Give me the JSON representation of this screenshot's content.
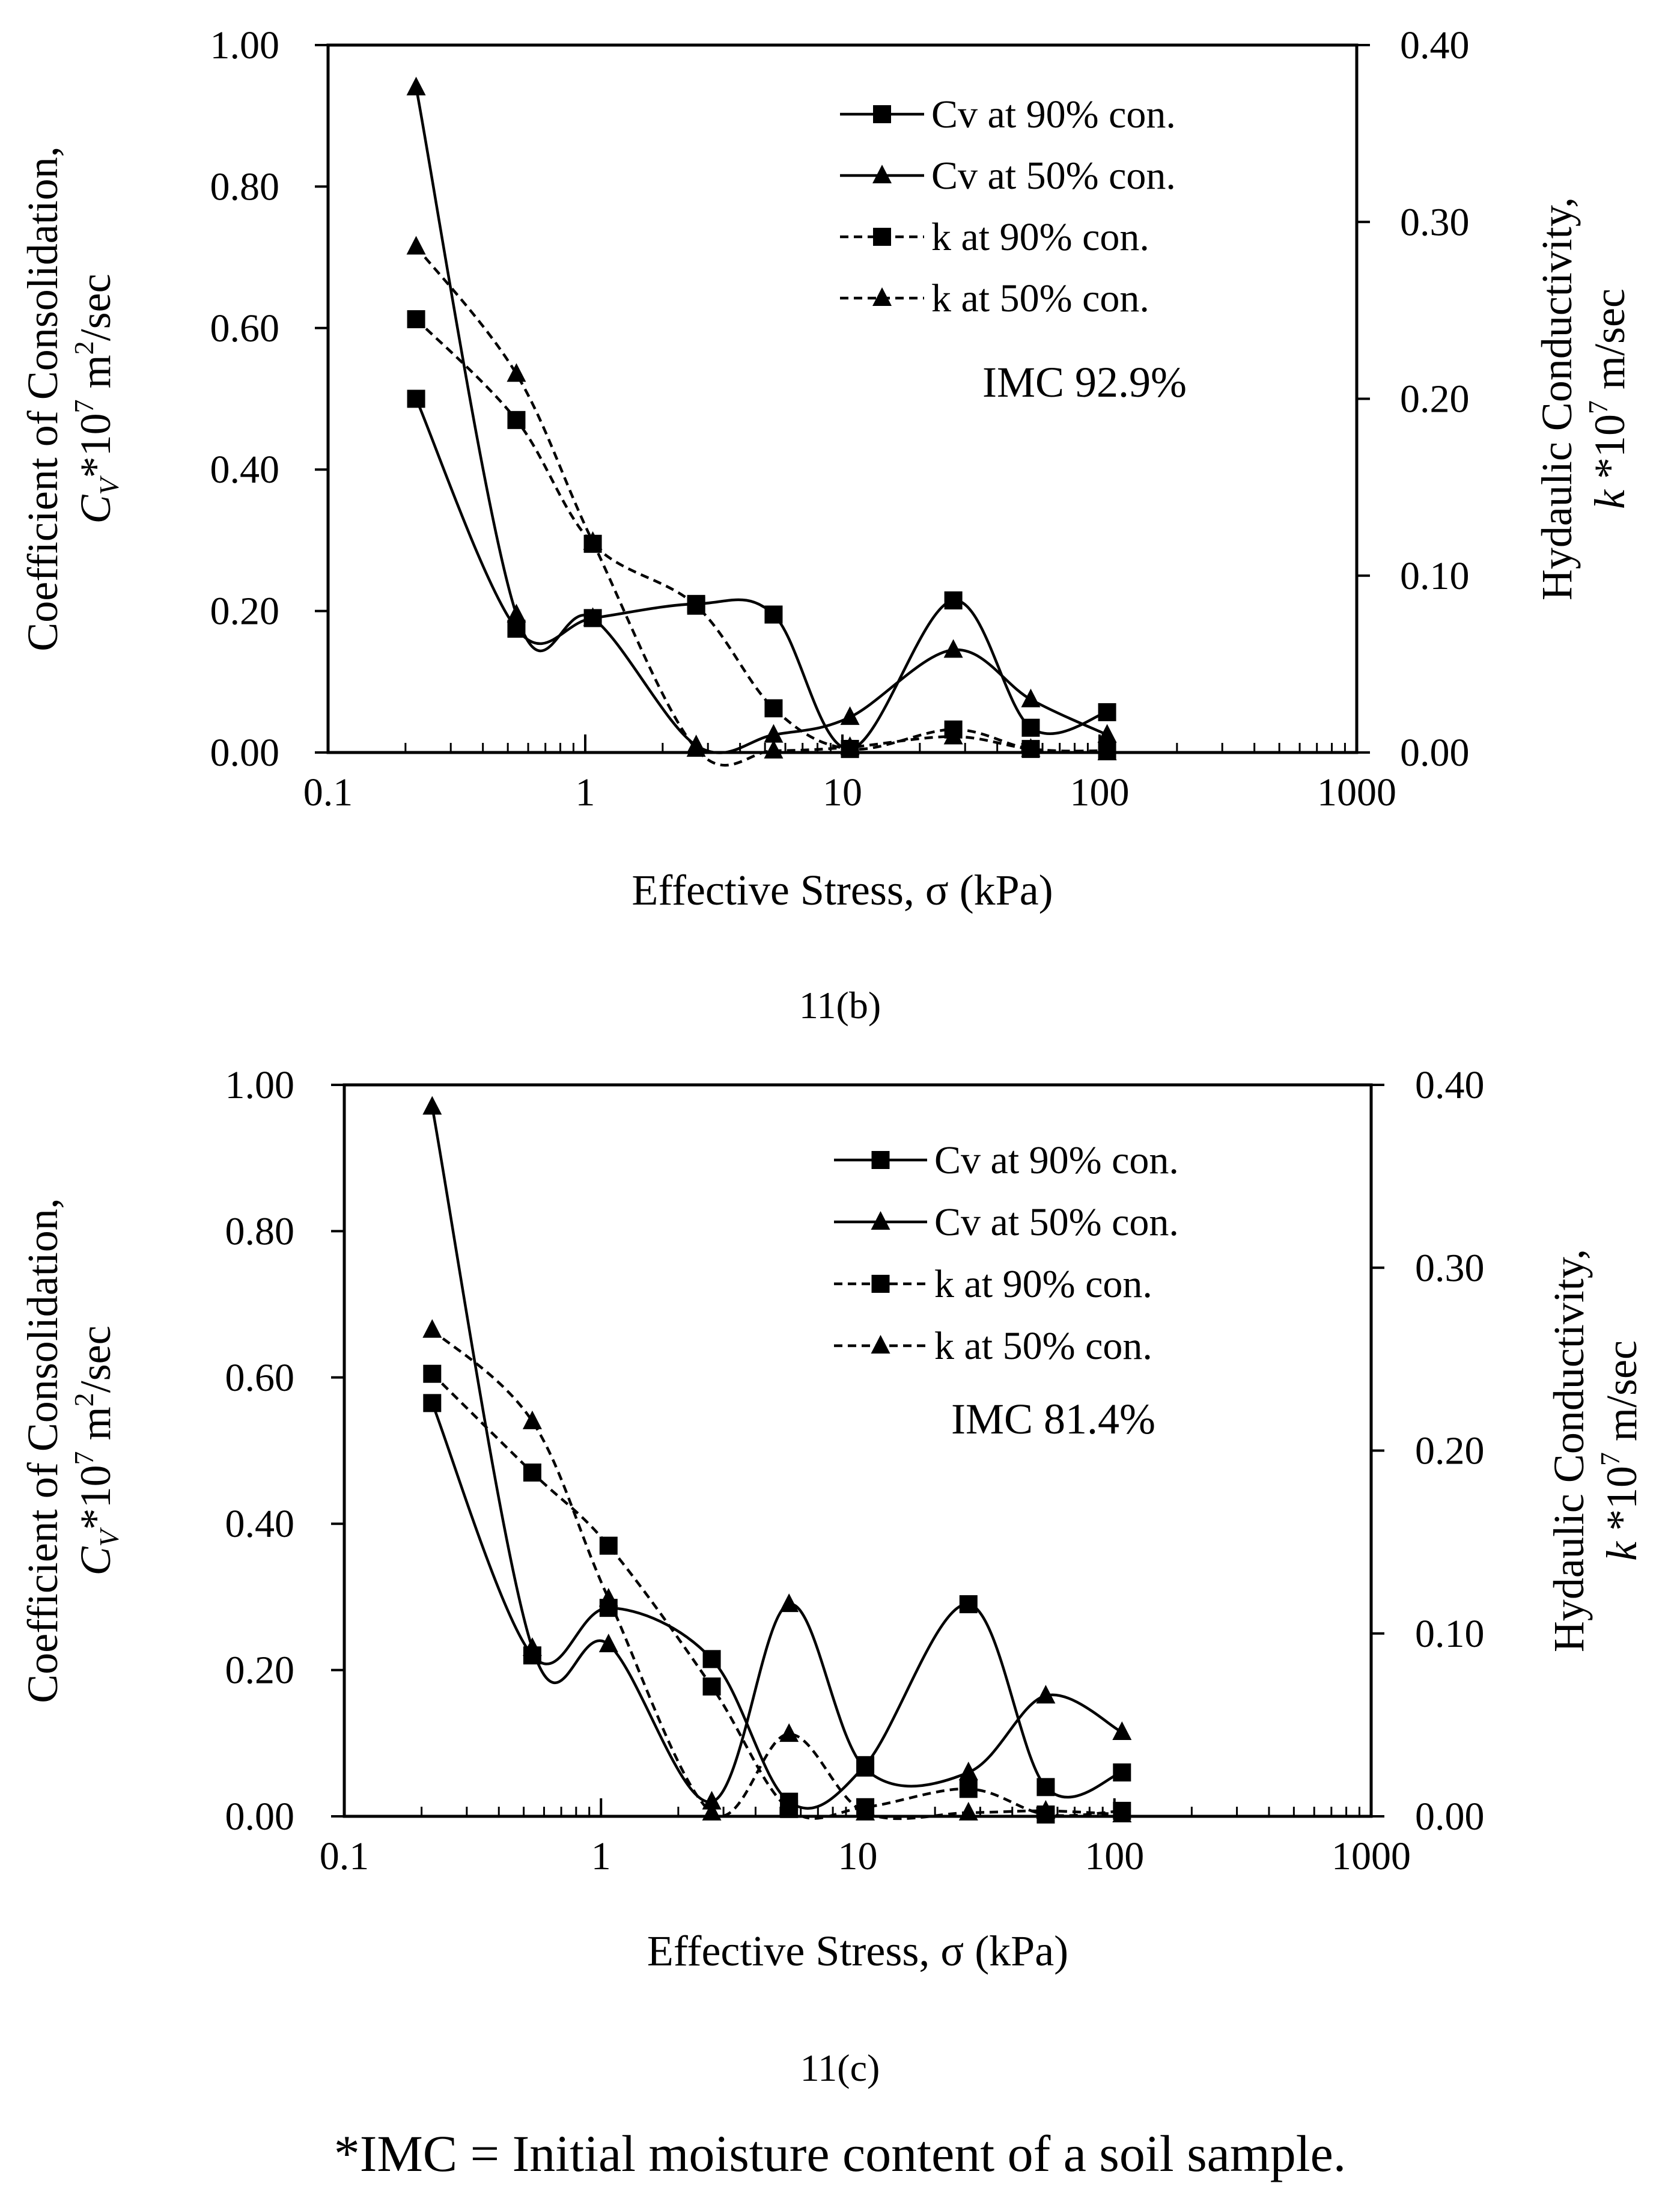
{
  "chart_data": [
    {
      "type": "line",
      "panel_label": "11(b)",
      "annotation": "IMC 92.9%",
      "xlabel": "Effective Stress, σ (kPa)",
      "x_scale": "log",
      "xlim": [
        0.1,
        1000
      ],
      "x_ticks": [
        "0.1",
        "1",
        "10",
        "100",
        "1000"
      ],
      "ylabel_left": {
        "line1": "Coefficient of Consolidation,",
        "sym": "C",
        "sub": "V",
        "mid": "*10",
        "exp": "7",
        "unit": " m",
        "unit_exp": "2",
        "tail": "/sec"
      },
      "ylabel_right": {
        "line1": "Hydaulic Conductivity,",
        "sym": "k",
        "mid": " *10",
        "exp": "7",
        "tail": " m/sec"
      },
      "ylim_left": [
        0,
        1.0
      ],
      "ylim_right": [
        0,
        0.4
      ],
      "y_ticks_left": [
        "0.00",
        "0.20",
        "0.40",
        "0.60",
        "0.80",
        "1.00"
      ],
      "y_ticks_right": [
        "0.00",
        "0.10",
        "0.20",
        "0.30",
        "0.40"
      ],
      "x": [
        0.22,
        0.54,
        1.07,
        2.7,
        5.4,
        10.7,
        27,
        54,
        107
      ],
      "series": [
        {
          "name": "Cv at 90% con.",
          "axis": "left",
          "marker": "square",
          "dash": "solid",
          "values": [
            0.5,
            0.175,
            0.19,
            0.21,
            0.195,
            0.005,
            0.215,
            0.035,
            0.057
          ]
        },
        {
          "name": "Cv at 50% con.",
          "axis": "left",
          "marker": "triangle",
          "dash": "solid",
          "values": [
            0.94,
            0.195,
            0.19,
            0.01,
            0.025,
            0.05,
            0.145,
            0.075,
            0.025
          ]
        },
        {
          "name": "k at 90% con.",
          "axis": "right",
          "marker": "square",
          "dash": "dashed",
          "values": [
            0.245,
            0.188,
            0.118,
            0.083,
            0.025,
            0.002,
            0.013,
            0.002,
            0.001
          ]
        },
        {
          "name": "k at 50% con.",
          "axis": "right",
          "marker": "triangle",
          "dash": "dashed",
          "values": [
            0.286,
            0.214,
            0.119,
            0.002,
            0.001,
            0.003,
            0.009,
            0.002,
            0.0
          ]
        }
      ]
    },
    {
      "type": "line",
      "panel_label": "11(c)",
      "annotation": "IMC 81.4%",
      "xlabel": "Effective Stress, σ (kPa)",
      "x_scale": "log",
      "xlim": [
        0.1,
        1000
      ],
      "x_ticks": [
        "0.1",
        "1",
        "10",
        "100",
        "1000"
      ],
      "ylabel_left": {
        "line1": "Coefficient of Consolidation,",
        "sym": "C",
        "sub": "V",
        "mid": "*10",
        "exp": "7",
        "unit": " m",
        "unit_exp": "2",
        "tail": "/sec"
      },
      "ylabel_right": {
        "line1": "Hydaulic Conductivity,",
        "sym": "k",
        "mid": " *10",
        "exp": "7",
        "tail": " m/sec"
      },
      "ylim_left": [
        0,
        1.0
      ],
      "ylim_right": [
        0,
        0.4
      ],
      "y_ticks_left": [
        "0.00",
        "0.20",
        "0.40",
        "0.60",
        "0.80",
        "1.00"
      ],
      "y_ticks_right": [
        "0.00",
        "0.10",
        "0.20",
        "0.30",
        "0.40"
      ],
      "x": [
        0.22,
        0.54,
        1.07,
        2.7,
        5.4,
        10.7,
        27,
        54,
        107
      ],
      "series": [
        {
          "name": "Cv at 90% con.",
          "axis": "left",
          "marker": "square",
          "dash": "solid",
          "values": [
            0.565,
            0.22,
            0.285,
            0.215,
            0.02,
            0.07,
            0.29,
            0.04,
            0.06
          ]
        },
        {
          "name": "Cv at 50% con.",
          "axis": "left",
          "marker": "triangle",
          "dash": "solid",
          "values": [
            0.97,
            0.23,
            0.235,
            0.02,
            0.29,
            0.065,
            0.06,
            0.165,
            0.115
          ]
        },
        {
          "name": "k at 90% con.",
          "axis": "right",
          "marker": "square",
          "dash": "dashed",
          "values": [
            0.242,
            0.188,
            0.148,
            0.071,
            0.004,
            0.005,
            0.015,
            0.001,
            0.003
          ]
        },
        {
          "name": "k at 50% con.",
          "axis": "right",
          "marker": "triangle",
          "dash": "dashed",
          "values": [
            0.266,
            0.216,
            0.119,
            0.002,
            0.045,
            0.002,
            0.002,
            0.003,
            0.001
          ]
        }
      ]
    }
  ],
  "footnote": "*IMC = Initial moisture content of a soil sample."
}
